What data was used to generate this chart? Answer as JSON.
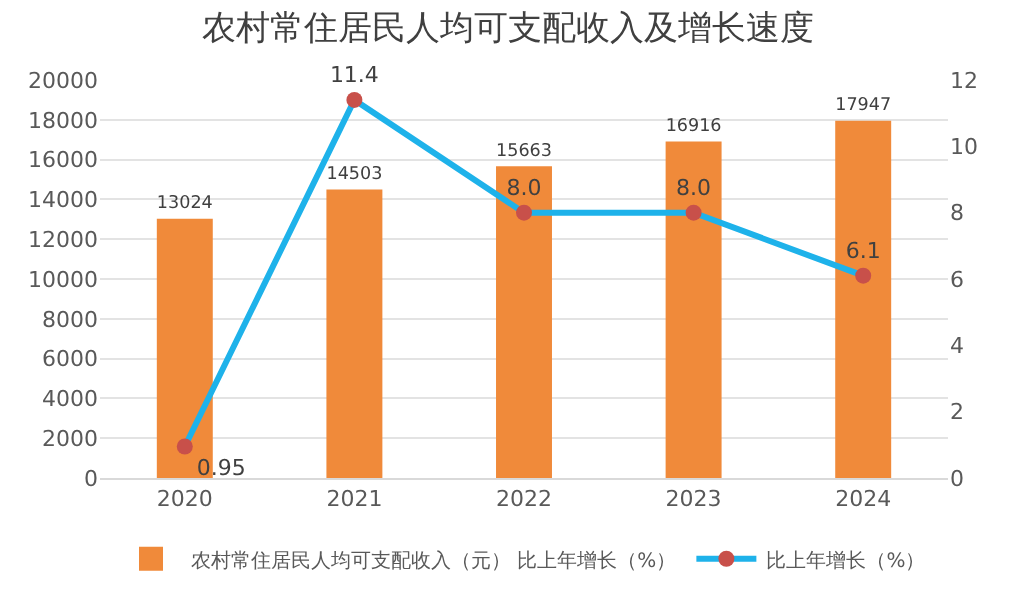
{
  "chart_data": {
    "type": "bar",
    "title": "农村常住居民人均可支配收入及增长速度",
    "categories": [
      "2020",
      "2021",
      "2022",
      "2023",
      "2024"
    ],
    "series": [
      {
        "name": "农村常住居民人均可支配收入（元） 比上年增长（%）",
        "color": "#f08a3a",
        "values": [
          13024,
          14503,
          15663,
          16916,
          17947
        ],
        "value_labels": [
          "13024",
          "14503",
          "15663",
          "16916",
          "17947"
        ]
      },
      {
        "name": "比上年增长（%）",
        "type": "line",
        "axis": "y2",
        "color": "#1eb2ea",
        "colors": [
          "#c8504a",
          "#c8504a",
          "#c8504a",
          "#c8504a",
          "#c8504a"
        ],
        "values": [
          0.95,
          11.4,
          8.0,
          8.0,
          6.1
        ],
        "value_labels": [
          "0.95",
          "11.4",
          "8.0",
          "8.0",
          "6.1"
        ]
      }
    ],
    "ylim": [
      0,
      20000
    ],
    "yticks": [
      0,
      2000,
      4000,
      6000,
      8000,
      10000,
      12000,
      14000,
      16000,
      18000,
      20000
    ],
    "y2lim": [
      0,
      12
    ],
    "y2ticks": [
      0,
      2,
      4,
      6,
      8,
      10,
      12
    ],
    "grid": "y",
    "legend": "bottom",
    "marker": "circle",
    "line_style": "solid"
  }
}
